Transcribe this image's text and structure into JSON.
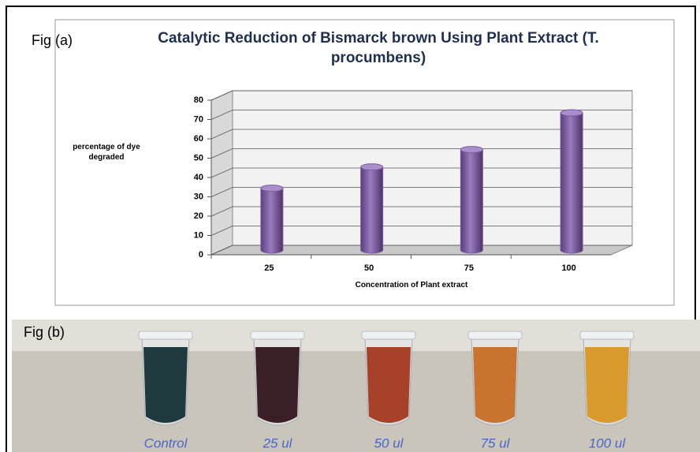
{
  "panel_labels": [
    "Fig (a)",
    "Fig (b)"
  ],
  "chart_data": {
    "type": "bar",
    "title": "Catalytic Reduction of Bismarck brown Using Plant Extract (T. procumbens)",
    "y_label": "percentage of dye degraded",
    "x_label": "Concentration of Plant extract",
    "categories": [
      "25",
      "50",
      "75",
      "100"
    ],
    "values": [
      32,
      43,
      52,
      71
    ],
    "color": "#7b5a9e",
    "ylim": [
      0,
      80
    ],
    "yticks": [
      0,
      10,
      20,
      30,
      40,
      50,
      60,
      70,
      80
    ],
    "grid": true
  },
  "photo": {
    "tube_labels": [
      "Control",
      "25 ul",
      "50 ul",
      "75 ul",
      "100 ul"
    ]
  }
}
